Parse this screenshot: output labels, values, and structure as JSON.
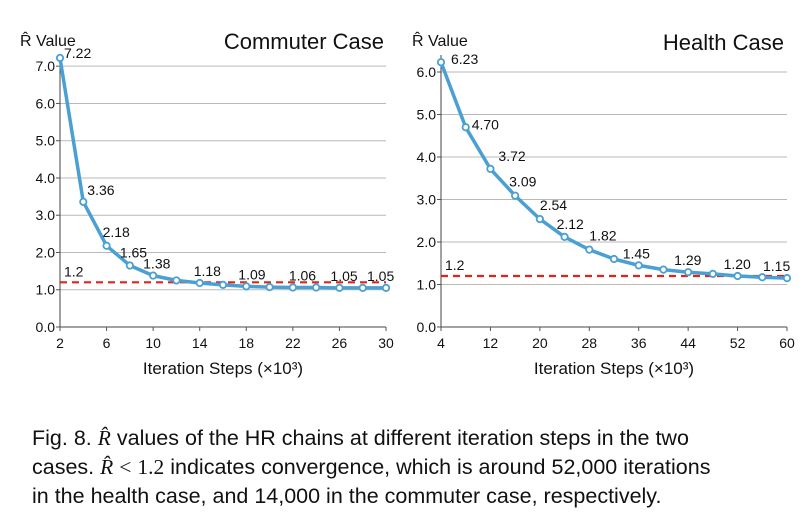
{
  "chart_data": [
    {
      "type": "line",
      "title": "Commuter Case",
      "ylabel": "R̂ Value",
      "xlabel": "Iteration Steps (×10³)",
      "x": [
        2,
        4,
        6,
        8,
        10,
        12,
        14,
        16,
        18,
        20,
        22,
        24,
        26,
        28,
        30
      ],
      "values": [
        7.22,
        3.36,
        2.18,
        1.65,
        1.38,
        1.25,
        1.18,
        1.13,
        1.09,
        1.07,
        1.06,
        1.06,
        1.05,
        1.05,
        1.05
      ],
      "point_labels": [
        {
          "x": 2,
          "text": "7.22"
        },
        {
          "x": 4,
          "text": "3.36"
        },
        {
          "x": 6,
          "text": "2.18"
        },
        {
          "x": 8,
          "text": "1.65"
        },
        {
          "x": 10,
          "text": "1.38"
        },
        {
          "x": 14,
          "text": "1.18"
        },
        {
          "x": 18,
          "text": "1.09"
        },
        {
          "x": 22,
          "text": "1.06"
        },
        {
          "x": 26,
          "text": "1.05"
        },
        {
          "x": 30,
          "text": "1.05"
        }
      ],
      "threshold": {
        "value": 1.2,
        "label": "1.2",
        "color": "#e0231c"
      },
      "xticks": [
        2,
        6,
        10,
        14,
        18,
        22,
        26,
        30
      ],
      "yticks": [
        "0.0",
        "1.0",
        "2.0",
        "3.0",
        "4.0",
        "5.0",
        "6.0",
        "7.0"
      ],
      "xlim": [
        2,
        30
      ],
      "ylim": [
        0,
        7.3
      ],
      "grid": true,
      "line_color": "#4a9fd3"
    },
    {
      "type": "line",
      "title": "Health Case",
      "ylabel": "R̂ Value",
      "xlabel": "Iteration Steps (×10³)",
      "x": [
        4,
        8,
        12,
        16,
        20,
        24,
        28,
        32,
        36,
        40,
        44,
        48,
        52,
        56,
        60
      ],
      "values": [
        6.23,
        4.7,
        3.72,
        3.09,
        2.54,
        2.12,
        1.82,
        1.6,
        1.45,
        1.35,
        1.29,
        1.25,
        1.2,
        1.17,
        1.15
      ],
      "point_labels": [
        {
          "x": 4,
          "text": "6.23"
        },
        {
          "x": 8,
          "text": "4.70"
        },
        {
          "x": 12,
          "text": "3.72"
        },
        {
          "x": 16,
          "text": "3.09"
        },
        {
          "x": 20,
          "text": "2.54"
        },
        {
          "x": 24,
          "text": "2.12"
        },
        {
          "x": 28,
          "text": "1.82"
        },
        {
          "x": 36,
          "text": "1.45"
        },
        {
          "x": 44,
          "text": "1.29"
        },
        {
          "x": 52,
          "text": "1.20"
        },
        {
          "x": 60,
          "text": "1.15"
        }
      ],
      "threshold": {
        "value": 1.2,
        "label": "1.2",
        "color": "#e0231c"
      },
      "xticks": [
        4,
        12,
        20,
        28,
        36,
        44,
        52,
        60
      ],
      "yticks": [
        "0.0",
        "1.0",
        "2.0",
        "3.0",
        "4.0",
        "5.0",
        "6.0"
      ],
      "xlim": [
        4,
        60
      ],
      "ylim": [
        0,
        6.4
      ],
      "grid": true,
      "line_color": "#4a9fd3"
    }
  ],
  "caption": {
    "line1_prefix": "Fig. 8.",
    "line1_symbol": "R̂",
    "line1_rest": "values of the HR chains at different iteration steps in the two",
    "line2_prefix": "cases.",
    "line2_symbol": "R̂",
    "line2_op": "<",
    "line2_value": "1.2",
    "line2_rest": "indicates convergence, which is around 52,000 iterations",
    "line3": "in the health case, and 14,000 in the commuter case, respectively."
  }
}
